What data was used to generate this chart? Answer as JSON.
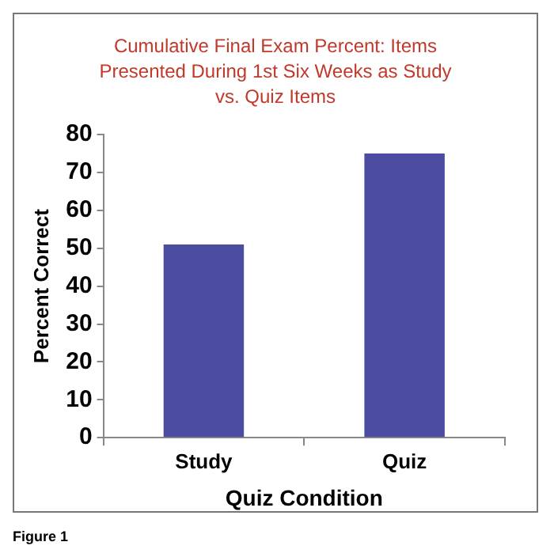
{
  "chart_data": {
    "type": "bar",
    "title": "Cumulative Final Exam Percent:  Items Presented During 1st Six Weeks as Study vs. Quiz Items",
    "xlabel": "Quiz Condition",
    "ylabel": "Percent Correct",
    "categories": [
      "Study",
      "Quiz"
    ],
    "values": [
      51,
      75
    ],
    "color": "#4b4b9f",
    "ylim": [
      0,
      80
    ],
    "yticks": [
      0,
      10,
      20,
      30,
      40,
      50,
      60,
      70,
      80
    ],
    "grid": false,
    "legend": false,
    "annotations": [
      "Figure 1"
    ]
  }
}
